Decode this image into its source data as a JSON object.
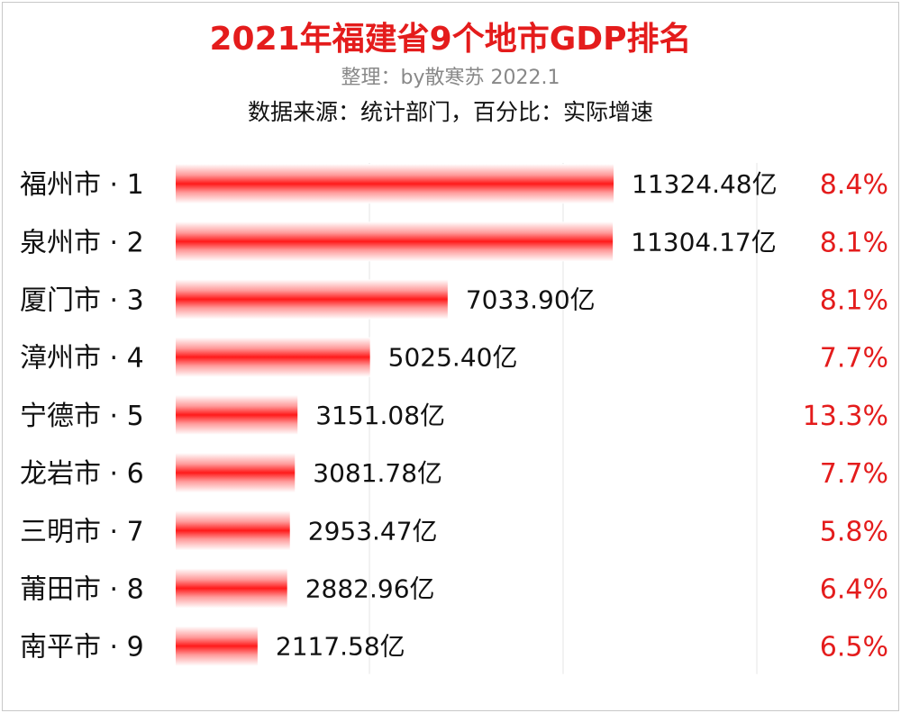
{
  "header": {
    "title": "2021年福建省9个地市GDP排名",
    "subtitle": "整理：by散寒苏  2022.1",
    "source": "数据来源：统计部门，百分比：实际增速"
  },
  "colors": {
    "bar": "#ff1a1a",
    "title": "#e41c1c",
    "percent": "#e41c1c"
  },
  "chart_data": {
    "type": "bar",
    "orientation": "horizontal",
    "categories": [
      "福州市 · 1",
      "泉州市 · 2",
      "厦门市 · 3",
      "漳州市 · 4",
      "宁德市 · 5",
      "龙岩市 · 6",
      "三明市 · 7",
      "莆田市 · 8",
      "南平市 · 9"
    ],
    "values": [
      11324.48,
      11304.17,
      7033.9,
      5025.4,
      3151.08,
      3081.78,
      2953.47,
      2882.96,
      2117.58
    ],
    "value_labels": [
      "11324.48亿",
      "11304.17亿",
      "7033.90亿",
      "5025.40亿",
      "3151.08亿",
      "3081.78亿",
      "2953.47亿",
      "2882.96亿",
      "2117.58亿"
    ],
    "growth_labels": [
      "8.4%",
      "8.1%",
      "8.1%",
      "7.7%",
      "13.3%",
      "7.7%",
      "5.8%",
      "6.4%",
      "6.5%"
    ],
    "growth": [
      8.4,
      8.1,
      8.1,
      7.7,
      13.3,
      7.7,
      5.8,
      6.4,
      6.5
    ],
    "unit": "亿",
    "xlim": [
      0,
      20000
    ],
    "grid": true,
    "legend": "none"
  }
}
